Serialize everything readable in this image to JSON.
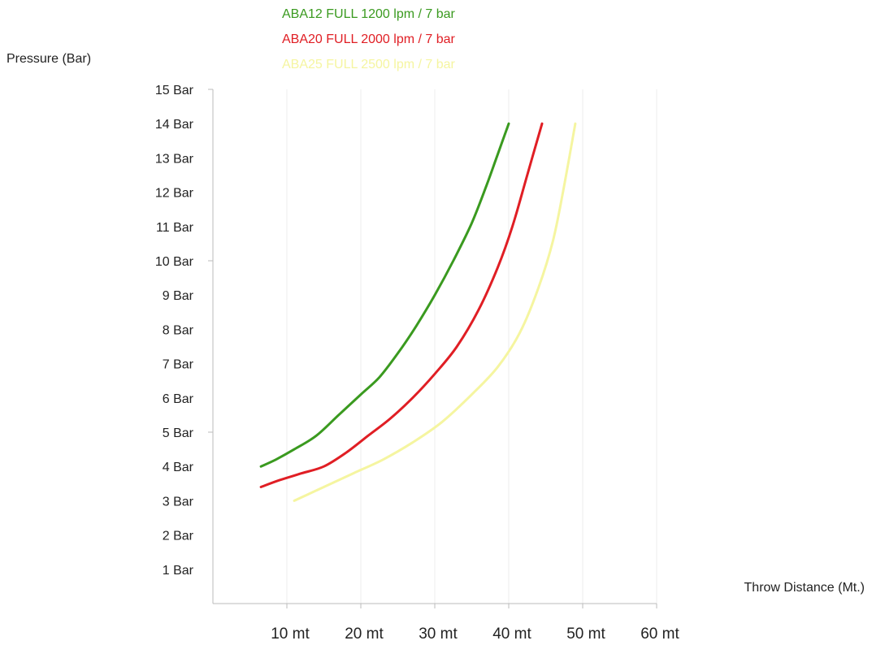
{
  "chart_data": {
    "type": "line",
    "ylabel": "Pressure (Bar)",
    "xlabel": "Throw Distance (Mt.)",
    "xlim": [
      0,
      60
    ],
    "ylim": [
      0,
      15
    ],
    "grid": true,
    "legend_position": "top",
    "y_ticks": [
      {
        "value": 15,
        "label": "15 Bar"
      },
      {
        "value": 14,
        "label": "14 Bar"
      },
      {
        "value": 13,
        "label": "13 Bar"
      },
      {
        "value": 12,
        "label": "12 Bar"
      },
      {
        "value": 11,
        "label": "11 Bar"
      },
      {
        "value": 10,
        "label": "10 Bar"
      },
      {
        "value": 9,
        "label": "9 Bar"
      },
      {
        "value": 8,
        "label": "8 Bar"
      },
      {
        "value": 7,
        "label": "7 Bar"
      },
      {
        "value": 6,
        "label": "6 Bar"
      },
      {
        "value": 5,
        "label": "5 Bar"
      },
      {
        "value": 4,
        "label": "4 Bar"
      },
      {
        "value": 3,
        "label": "3 Bar"
      },
      {
        "value": 2,
        "label": "2 Bar"
      },
      {
        "value": 1,
        "label": "1 Bar"
      }
    ],
    "x_ticks": [
      {
        "value": 10,
        "label": "10 mt"
      },
      {
        "value": 20,
        "label": "20 mt"
      },
      {
        "value": 30,
        "label": "30 mt"
      },
      {
        "value": 40,
        "label": "40 mt"
      },
      {
        "value": 50,
        "label": "50 mt"
      },
      {
        "value": 60,
        "label": "60 mt"
      }
    ],
    "series": [
      {
        "name": "ABA12 FULL 1200 lpm / 7 bar",
        "color": "#3a9a1f",
        "x": [
          6.5,
          8.5,
          11,
          14,
          17,
          20,
          22.5,
          25,
          27.5,
          30,
          32.5,
          35,
          37,
          38.5,
          40
        ],
        "y": [
          4.0,
          4.2,
          4.5,
          4.9,
          5.5,
          6.1,
          6.6,
          7.3,
          8.1,
          9.0,
          10.0,
          11.1,
          12.2,
          13.1,
          14.0
        ]
      },
      {
        "name": "ABA20 FULL 2000 lpm / 7 bar",
        "color": "#e01e24",
        "x": [
          6.5,
          9,
          12,
          15,
          18,
          21,
          24,
          27,
          30,
          33,
          36,
          38.5,
          40.5,
          42.5,
          44.5
        ],
        "y": [
          3.4,
          3.6,
          3.8,
          4.0,
          4.4,
          4.9,
          5.4,
          6.0,
          6.7,
          7.5,
          8.6,
          9.8,
          11.0,
          12.5,
          14.0
        ]
      },
      {
        "name": "ABA25 FULL 2500 lpm / 7 bar",
        "color": "#f5f5a0",
        "x": [
          11,
          15,
          19,
          23,
          27,
          31,
          35,
          38.5,
          41.5,
          44,
          46,
          47.5,
          49
        ],
        "y": [
          3.0,
          3.4,
          3.8,
          4.2,
          4.7,
          5.3,
          6.1,
          6.9,
          7.9,
          9.2,
          10.6,
          12.2,
          14.0
        ]
      }
    ]
  }
}
